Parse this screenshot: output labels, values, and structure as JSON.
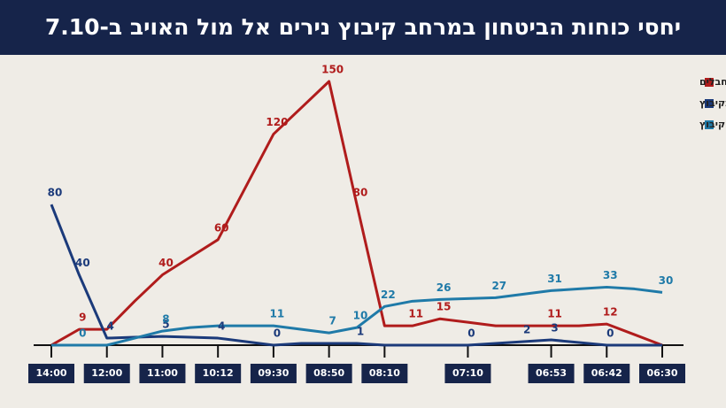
{
  "chart_data": {
    "type": "line",
    "title": "יחסי כוחות הביטחון במרחב קיבוץ נירים אל מול האויב ב-7.10",
    "categories": [
      "14:00",
      null,
      "12:00",
      null,
      "11:00",
      null,
      "10:12",
      null,
      "09:30",
      null,
      "08:50",
      null,
      "08:10",
      null,
      null,
      "07:10",
      null,
      null,
      "06:53",
      null,
      "06:42",
      null,
      "06:30"
    ],
    "series": [
      {
        "name": "מחבלים",
        "color": "#b01c1c",
        "values": [
          0,
          9,
          9,
          25,
          40,
          50,
          60,
          90,
          120,
          135,
          150,
          80,
          11,
          11,
          15,
          13,
          11,
          11,
          11,
          11,
          12,
          6,
          0
        ],
        "value_labels": [
          null,
          "9",
          null,
          null,
          "40",
          null,
          "60",
          null,
          "120",
          null,
          "150",
          "80",
          null,
          "11",
          "15",
          null,
          null,
          null,
          "11",
          null,
          "12",
          null,
          null
        ]
      },
      {
        "name": "כוחות הביטחון בקיבוץ",
        "color": "#1b3a7a",
        "values": [
          80,
          40,
          4,
          4.5,
          5,
          4.5,
          4,
          2,
          0,
          1,
          1,
          1,
          0,
          0,
          0,
          0,
          1,
          2,
          3,
          1.5,
          0,
          0,
          0
        ],
        "value_labels": [
          "80",
          "40",
          "4",
          null,
          "5",
          null,
          "4",
          null,
          "0",
          null,
          null,
          "1",
          null,
          null,
          null,
          "0",
          null,
          "2",
          "3",
          null,
          "0",
          null,
          null
        ]
      },
      {
        "name": "כוחות הביטחון במרחב הקיבוץ",
        "color": "#1f7aa8",
        "values": [
          0,
          0,
          0,
          4,
          8,
          10,
          11,
          11,
          11,
          9,
          7,
          10,
          22,
          25,
          26,
          26.5,
          27,
          29,
          31,
          32,
          33,
          32,
          30
        ],
        "value_labels": [
          null,
          "0",
          null,
          null,
          "8",
          null,
          null,
          null,
          "11",
          null,
          "7",
          "10",
          "22",
          null,
          "26",
          null,
          "27",
          null,
          "31",
          null,
          "33",
          null,
          "30"
        ]
      }
    ]
  }
}
